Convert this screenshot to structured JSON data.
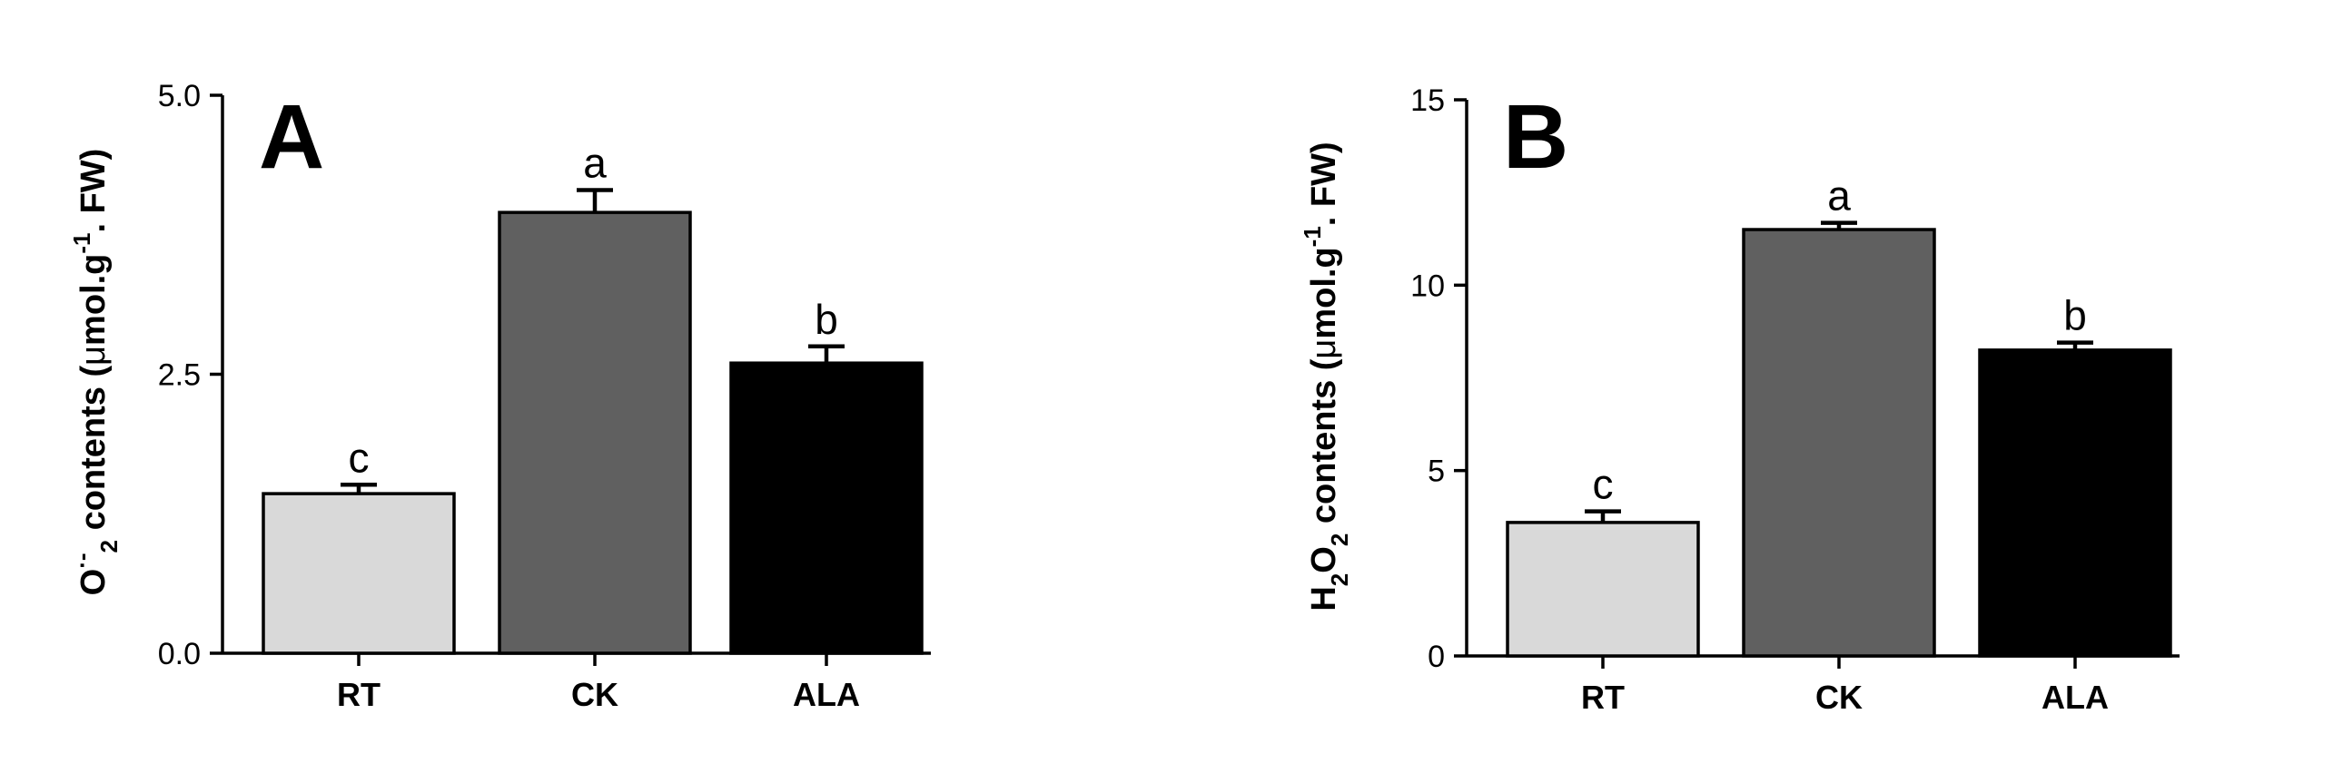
{
  "chart_data": [
    {
      "type": "bar",
      "panel_label": "A",
      "categories": [
        "RT",
        "CK",
        "ALA"
      ],
      "values": [
        1.43,
        3.95,
        2.6
      ],
      "errors": [
        0.08,
        0.2,
        0.15
      ],
      "significance": [
        "c",
        "a",
        "b"
      ],
      "colors": [
        "#d9d9d9",
        "#606060",
        "#000000"
      ],
      "ylabel": {
        "base": "O",
        "sup1": "·-",
        "sub": "2",
        "mid": " contents (",
        "mu": "μ",
        "unit": "mol.g",
        "sup2": "-1",
        "tail": ". FW)"
      },
      "ylim": [
        0,
        5
      ],
      "yticks": [
        "0.0",
        "2.5",
        "5.0"
      ],
      "ytick_values": [
        0,
        2.5,
        5
      ]
    },
    {
      "type": "bar",
      "panel_label": "B",
      "categories": [
        "RT",
        "CK",
        "ALA"
      ],
      "values": [
        3.6,
        11.5,
        8.25
      ],
      "errors": [
        0.3,
        0.18,
        0.2
      ],
      "significance": [
        "c",
        "a",
        "b"
      ],
      "colors": [
        "#d9d9d9",
        "#606060",
        "#000000"
      ],
      "ylabel": {
        "base": "H",
        "sub": "2",
        "base2": "O",
        "sub2": "2",
        "mid": " contents (",
        "mu": "μ",
        "unit": "mol.g",
        "sup2": "-1",
        "tail": ". FW)"
      },
      "ylim": [
        0,
        15
      ],
      "yticks": [
        "0",
        "5",
        "10",
        "15"
      ],
      "ytick_values": [
        0,
        5,
        10,
        15
      ]
    }
  ]
}
